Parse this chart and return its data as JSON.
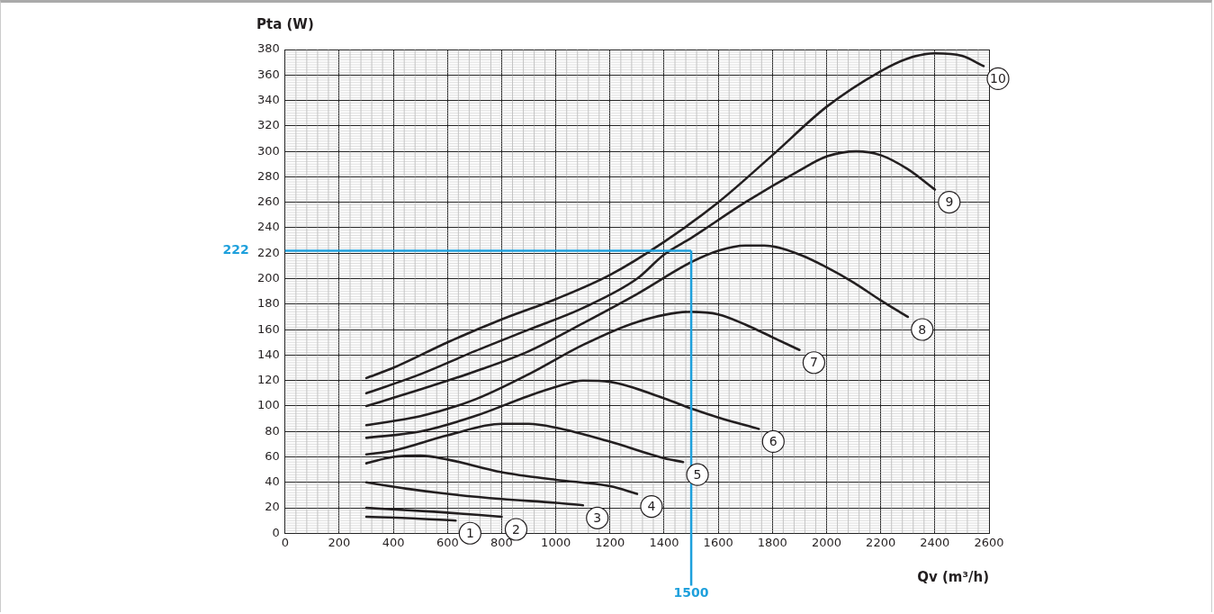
{
  "chart_data": {
    "type": "line",
    "xlabel": "Qv (m³/h)",
    "ylabel": "Pta (W)",
    "xlim": [
      0,
      2600
    ],
    "xticks": [
      0,
      200,
      400,
      600,
      800,
      1000,
      1200,
      1400,
      1600,
      1800,
      2000,
      2200,
      2400,
      2600
    ],
    "ylim": [
      0,
      380
    ],
    "yticks": [
      0,
      20,
      40,
      60,
      80,
      100,
      120,
      140,
      160,
      180,
      200,
      220,
      240,
      260,
      280,
      300,
      320,
      340,
      360,
      380
    ],
    "grid": true,
    "legend": false,
    "marker": "none",
    "line_style": "solid",
    "series": [
      {
        "name": "1",
        "color": "#231f20",
        "x": [
          300,
          450,
          630
        ],
        "values": [
          13,
          12,
          10
        ]
      },
      {
        "name": "2",
        "color": "#231f20",
        "x": [
          300,
          550,
          800
        ],
        "values": [
          20,
          17,
          13
        ]
      },
      {
        "name": "3",
        "color": "#231f20",
        "x": [
          300,
          450,
          600,
          800,
          1000,
          1100
        ],
        "values": [
          40,
          35,
          31,
          27,
          24,
          22
        ]
      },
      {
        "name": "4",
        "color": "#231f20",
        "x": [
          300,
          400,
          500,
          600,
          800,
          1000,
          1200,
          1300
        ],
        "values": [
          55,
          60,
          61,
          58,
          48,
          42,
          37,
          31
        ]
      },
      {
        "name": "5",
        "color": "#231f20",
        "x": [
          300,
          400,
          600,
          800,
          900,
          1000,
          1200,
          1400,
          1470
        ],
        "values": [
          62,
          65,
          77,
          86,
          86,
          83,
          72,
          59,
          56
        ]
      },
      {
        "name": "6",
        "color": "#231f20",
        "x": [
          300,
          500,
          700,
          900,
          1000,
          1100,
          1200,
          1400,
          1500,
          1600,
          1750
        ],
        "values": [
          75,
          80,
          92,
          108,
          115,
          120,
          119,
          106,
          98,
          91,
          82
        ]
      },
      {
        "name": "7",
        "color": "#231f20",
        "x": [
          300,
          500,
          700,
          900,
          1100,
          1300,
          1500,
          1600,
          1700,
          1800,
          1900
        ],
        "values": [
          85,
          92,
          105,
          125,
          148,
          166,
          174,
          172,
          164,
          154,
          144
        ]
      },
      {
        "name": "8",
        "color": "#231f20",
        "x": [
          300,
          500,
          700,
          900,
          1100,
          1300,
          1500,
          1600,
          1700,
          1770,
          1900,
          2000,
          2100,
          2200,
          2300
        ],
        "values": [
          100,
          113,
          127,
          143,
          165,
          188,
          213,
          222,
          226,
          226,
          219,
          209,
          197,
          183,
          170
        ]
      },
      {
        "name": "9",
        "color": "#231f20",
        "x": [
          300,
          500,
          700,
          900,
          1100,
          1300,
          1400,
          1500,
          1700,
          1900,
          2000,
          2110,
          2200,
          2300,
          2400
        ],
        "values": [
          110,
          125,
          143,
          160,
          177,
          200,
          219,
          232,
          260,
          285,
          296,
          300,
          297,
          286,
          270
        ]
      },
      {
        "name": "10",
        "color": "#231f20",
        "x": [
          300,
          400,
          600,
          800,
          1000,
          1200,
          1400,
          1600,
          1800,
          2000,
          2200,
          2300,
          2400,
          2500,
          2580
        ],
        "values": [
          122,
          130,
          150,
          168,
          184,
          203,
          229,
          260,
          297,
          335,
          363,
          373,
          377,
          375,
          367
        ]
      }
    ],
    "ref_lines": [
      {
        "axis": "x",
        "value": 1500,
        "label": "1500",
        "color": "#1ea0dc"
      },
      {
        "axis": "y",
        "value": 222,
        "label": "222",
        "color": "#1ea0dc"
      }
    ]
  }
}
